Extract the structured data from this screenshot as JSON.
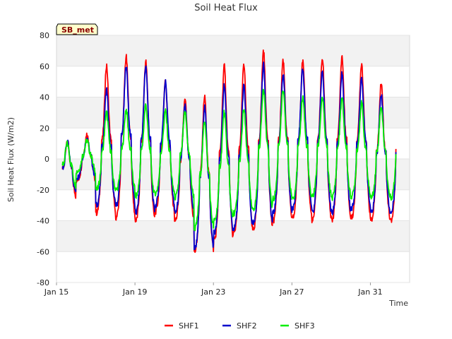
{
  "chart_data": {
    "type": "line",
    "title": "Soil Heat Flux",
    "xlabel": "Time",
    "ylabel": "Soil Heat Flux (W/m2)",
    "badge": "SB_met",
    "ylim": [
      -80,
      80
    ],
    "yticks": [
      -80,
      -60,
      -40,
      -20,
      0,
      20,
      40,
      60,
      80
    ],
    "xlim_days": [
      0,
      18
    ],
    "xticks": [
      {
        "day": 0,
        "label": "Jan 15"
      },
      {
        "day": 4,
        "label": "Jan 19"
      },
      {
        "day": 8,
        "label": "Jan 23"
      },
      {
        "day": 12,
        "label": "Jan 27"
      },
      {
        "day": 16,
        "label": "Jan 31"
      }
    ],
    "x_start_day": 0.3,
    "x_end_day": 17.3,
    "daily_peak_day_offset": 0.55,
    "series": [
      {
        "name": "SHF1",
        "color": "#ff0000",
        "peaks": [
          12,
          16,
          60,
          66,
          63,
          50,
          38,
          40,
          60,
          61,
          70,
          64,
          63,
          65,
          66,
          62,
          49
        ],
        "troughs": [
          -25,
          -14,
          -35,
          -38,
          -40,
          -34,
          -40,
          -60,
          -52,
          -48,
          -45,
          -40,
          -38,
          -40,
          -40,
          -38,
          -40
        ]
      },
      {
        "name": "SHF2",
        "color": "#0000cc",
        "peaks": [
          11,
          14,
          45,
          60,
          60,
          50,
          34,
          34,
          48,
          47,
          61,
          55,
          58,
          57,
          55,
          53,
          42
        ],
        "troughs": [
          -22,
          -12,
          -30,
          -30,
          -35,
          -30,
          -35,
          -58,
          -48,
          -45,
          -42,
          -35,
          -32,
          -35,
          -35,
          -32,
          -35
        ]
      },
      {
        "name": "SHF3",
        "color": "#00ee00",
        "peaks": [
          10,
          12,
          30,
          32,
          35,
          31,
          30,
          25,
          30,
          32,
          46,
          44,
          40,
          40,
          39,
          36,
          34
        ],
        "troughs": [
          -18,
          -8,
          -20,
          -20,
          -24,
          -22,
          -25,
          -45,
          -40,
          -35,
          -32,
          -26,
          -25,
          -24,
          -25,
          -24,
          -25
        ]
      }
    ],
    "legend": [
      "SHF1",
      "SHF2",
      "SHF3"
    ],
    "legend_position": "bottom-center",
    "grid": true
  }
}
